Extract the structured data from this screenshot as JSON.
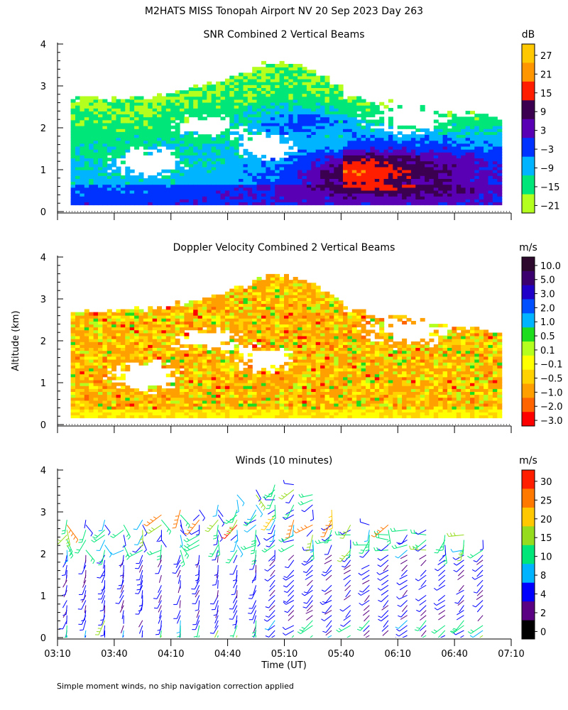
{
  "figure": {
    "title": "M2HATS MISS Tonopah Airport NV  20 Sep 2023 Day 263",
    "footnote": "Simple moment winds, no ship navigation correction applied",
    "ylabel": "Altitude (km)",
    "xlabel": "Time (UT)"
  },
  "chart_data": [
    {
      "type": "heatmap",
      "title": "SNR Combined 2 Vertical Beams",
      "ylim": [
        0,
        4
      ],
      "yticks": [
        "0",
        "1",
        "2",
        "3",
        "4"
      ],
      "xlim": [
        "03:10",
        "07:10"
      ],
      "colorbar": {
        "unit": "dB",
        "ticks": [
          "27",
          "21",
          "15",
          "9",
          "3",
          "−3",
          "−9",
          "−15",
          "−21"
        ],
        "colors": [
          "#ffc800",
          "#ff9600",
          "#ff1e00",
          "#3c0050",
          "#5a00b4",
          "#0032ff",
          "#00b4ff",
          "#00e678",
          "#b4ff1e"
        ]
      }
    },
    {
      "type": "heatmap",
      "title": "Doppler Velocity Combined 2 Vertical Beams",
      "ylim": [
        0,
        4
      ],
      "yticks": [
        "0",
        "1",
        "2",
        "3",
        "4"
      ],
      "xlim": [
        "03:10",
        "07:10"
      ],
      "colorbar": {
        "unit": "m/s",
        "ticks": [
          "10.0",
          "5.0",
          "3.0",
          "2.0",
          "1.0",
          "0.5",
          "0.1",
          "−0.1",
          "−0.5",
          "−1.0",
          "−2.0",
          "−3.0"
        ],
        "colors": [
          "#2d0a2d",
          "#3c006e",
          "#1e00c8",
          "#0050ff",
          "#00b4ff",
          "#1edc1e",
          "#b4ff1e",
          "#ffff00",
          "#ffd200",
          "#ffa000",
          "#ff6400",
          "#ff0000"
        ]
      }
    },
    {
      "type": "scatter",
      "title": "Winds (10 minutes)",
      "ylim": [
        0,
        4
      ],
      "yticks": [
        "0",
        "1",
        "2",
        "3",
        "4"
      ],
      "xlim": [
        "03:10",
        "07:10"
      ],
      "xticks": [
        "03:10",
        "03:40",
        "04:10",
        "04:40",
        "05:10",
        "05:40",
        "06:10",
        "06:40",
        "07:10"
      ],
      "colorbar": {
        "unit": "m/s",
        "ticks": [
          "30",
          "25",
          "20",
          "15",
          "10",
          "8",
          "4",
          "2",
          "0"
        ],
        "colors": [
          "#ff1e00",
          "#ff7800",
          "#ffc800",
          "#96dc1e",
          "#00e678",
          "#00b4ff",
          "#0000ff",
          "#5a0082",
          "#000000"
        ]
      }
    }
  ]
}
